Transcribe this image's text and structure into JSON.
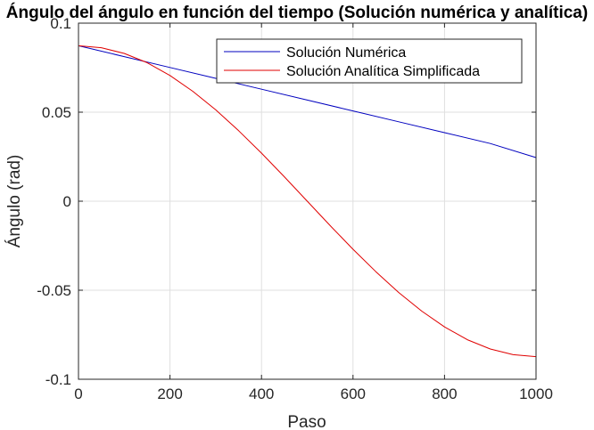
{
  "chart_data": {
    "type": "line",
    "title": "Ángulo del ángulo en función del tiempo (Solución numérica y analítica)",
    "xlabel": "Paso",
    "ylabel": "Ángulo (rad)",
    "xlim": [
      0,
      1000
    ],
    "ylim": [
      -0.1,
      0.1
    ],
    "xticks": [
      0,
      200,
      400,
      600,
      800,
      1000
    ],
    "xtick_labels": [
      "0",
      "200",
      "400",
      "600",
      "800",
      "1000"
    ],
    "yticks": [
      -0.1,
      -0.05,
      0,
      0.05,
      0.1
    ],
    "ytick_labels": [
      "-0.1",
      "-0.05",
      "0",
      "0.05",
      "0.1"
    ],
    "grid": true,
    "legend_position": "top-right",
    "series": [
      {
        "name": "Solución Numérica",
        "color": "#0000bf",
        "x": [
          0,
          100,
          200,
          300,
          400,
          500,
          600,
          700,
          800,
          900,
          1000
        ],
        "y": [
          0.0873,
          0.0812,
          0.0751,
          0.069,
          0.0629,
          0.0568,
          0.0507,
          0.0446,
          0.0385,
          0.0324,
          0.0245
        ]
      },
      {
        "name": "Solución Analítica Simplificada",
        "color": "#e00000",
        "x": [
          0,
          50,
          100,
          150,
          200,
          250,
          300,
          350,
          400,
          450,
          500,
          550,
          600,
          650,
          700,
          750,
          800,
          850,
          900,
          950,
          1000
        ],
        "y": [
          0.0873,
          0.0862,
          0.083,
          0.0778,
          0.0706,
          0.0617,
          0.0513,
          0.0396,
          0.027,
          0.0137,
          0.0,
          -0.0137,
          -0.027,
          -0.0396,
          -0.0513,
          -0.0617,
          -0.0706,
          -0.0778,
          -0.083,
          -0.0862,
          -0.0873
        ]
      }
    ]
  }
}
